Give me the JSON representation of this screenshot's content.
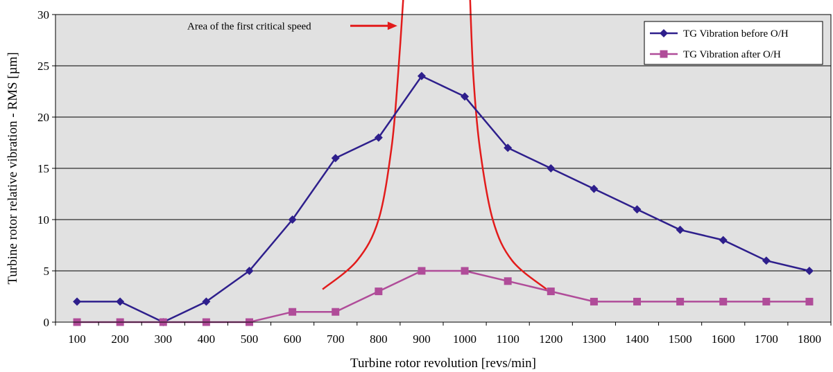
{
  "chart_data": {
    "type": "line",
    "xlabel": "Turbine rotor revolution [revs/min]",
    "ylabel": "Turbine rotor relative vibration - RMS [µm]",
    "categories": [
      "100",
      "200",
      "300",
      "400",
      "500",
      "600",
      "700",
      "800",
      "900",
      "1000",
      "1100",
      "1200",
      "1300",
      "1400",
      "1500",
      "1600",
      "1700",
      "1800"
    ],
    "ylim": [
      0,
      30
    ],
    "yticks": [
      0,
      5,
      10,
      15,
      20,
      25,
      30
    ],
    "grid": "horizontal",
    "legend_position": "top-right",
    "series": [
      {
        "name": "TG Vibration before O/H",
        "color": "#2e1f8c",
        "marker": "diamond",
        "values": [
          2,
          2,
          0,
          2,
          5,
          10,
          16,
          18,
          24,
          22,
          17,
          15,
          13,
          11,
          9,
          8,
          6,
          5
        ]
      },
      {
        "name": "TG Vibration after O/H",
        "color": "#b04c99",
        "marker": "square",
        "values": [
          0,
          0,
          0,
          0,
          0,
          1,
          1,
          3,
          5,
          5,
          4,
          3,
          2,
          2,
          2,
          2,
          2,
          2
        ]
      }
    ],
    "annotation": {
      "text": "Area of the first critical speed",
      "color": "#e21b1b",
      "curve_left": [
        [
          670,
          3.2
        ],
        [
          750,
          6
        ],
        [
          800,
          10
        ],
        [
          830,
          17
        ],
        [
          845,
          24
        ],
        [
          858,
          32
        ]
      ],
      "curve_right": [
        [
          1012,
          32
        ],
        [
          1020,
          24
        ],
        [
          1035,
          17
        ],
        [
          1065,
          10
        ],
        [
          1110,
          6
        ],
        [
          1190,
          3.2
        ]
      ],
      "arrow_tip": [
        850,
        28.9
      ]
    }
  }
}
